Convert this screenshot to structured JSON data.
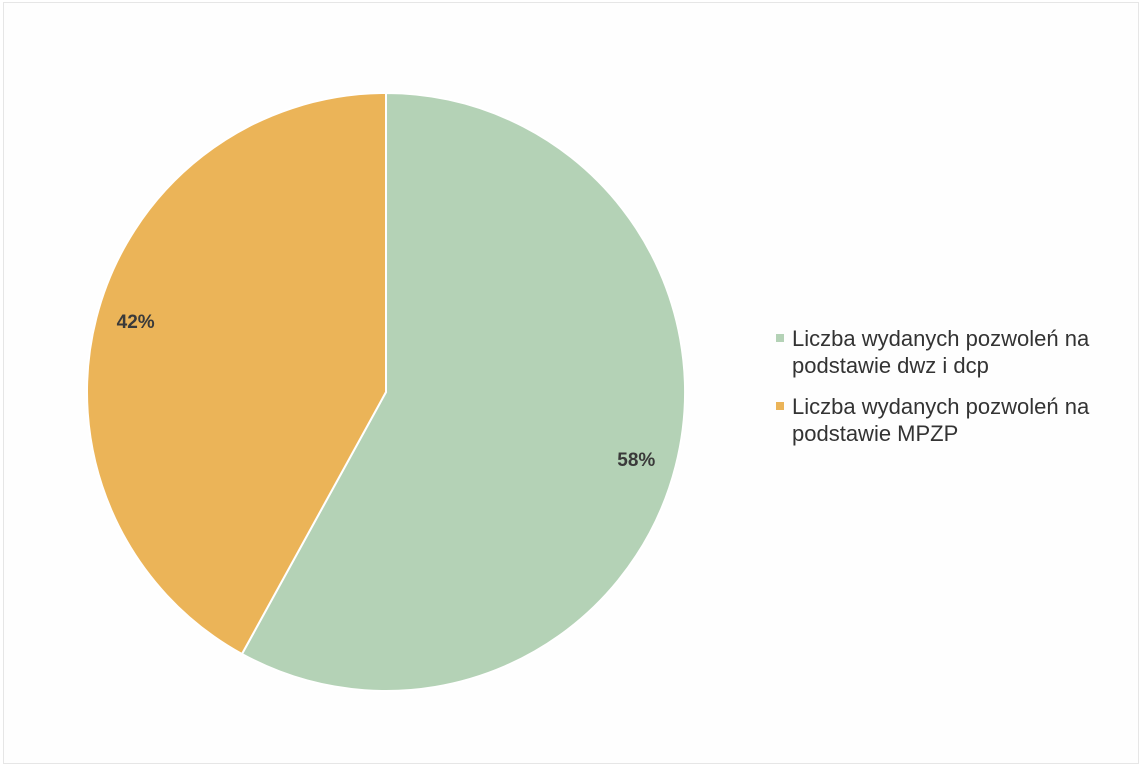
{
  "chart_data": {
    "type": "pie",
    "categories": [
      "Liczba wydanych pozwoleń na podstawie dwz i dcp",
      "Liczba wydanych pozwoleń na podstawie MPZP"
    ],
    "values": [
      58,
      42
    ],
    "data_labels": [
      "58%",
      "42%"
    ],
    "colors": [
      "#b4d2b6",
      "#ebb458"
    ],
    "legend_position": "right",
    "start_angle": "12 o'clock",
    "direction": "clockwise"
  }
}
